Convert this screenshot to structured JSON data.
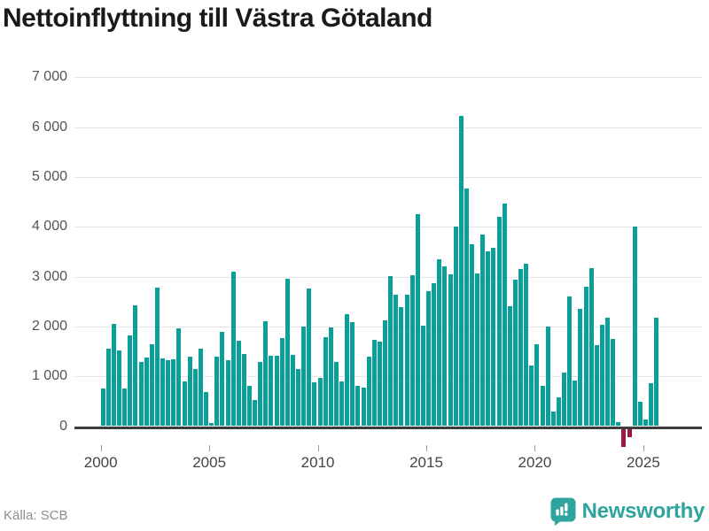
{
  "title": "Nettoinflyttning till Västra Götaland",
  "source": "Källa: SCB",
  "brand": {
    "name": "Newsworthy"
  },
  "colors": {
    "bar_positive": "#0aa099",
    "bar_negative": "#971843",
    "gridline": "#e4e4e4",
    "axis": "#3d3d3d",
    "labels": "#545454",
    "title": "#1a1a1a",
    "brand_teal": "#2fa49e"
  },
  "chart_data": {
    "type": "bar",
    "title": "Nettoinflyttning till Västra Götaland",
    "xlabel": "",
    "ylabel": "",
    "x_start": "2000 Q1",
    "x_end": "2025 Q3",
    "x_frequency": "quarterly",
    "ylim": [
      -500,
      7000
    ],
    "grid": "horizontal",
    "y_ticks": [
      {
        "value": 0,
        "label": "0"
      },
      {
        "value": 1000,
        "label": "1 000"
      },
      {
        "value": 2000,
        "label": "2 000"
      },
      {
        "value": 3000,
        "label": "3 000"
      },
      {
        "value": 4000,
        "label": "4 000"
      },
      {
        "value": 5000,
        "label": "5 000"
      },
      {
        "value": 6000,
        "label": "6 000"
      },
      {
        "value": 7000,
        "label": "7 000"
      }
    ],
    "x_ticks": [
      {
        "year": 2000,
        "label": "2000"
      },
      {
        "year": 2005,
        "label": "2005"
      },
      {
        "year": 2010,
        "label": "2010"
      },
      {
        "year": 2015,
        "label": "2015"
      },
      {
        "year": 2020,
        "label": "2020"
      },
      {
        "year": 2025,
        "label": "2025"
      }
    ],
    "values": [
      750,
      1550,
      2050,
      1520,
      750,
      1820,
      2420,
      1280,
      1370,
      1650,
      2780,
      1360,
      1330,
      1340,
      1960,
      900,
      1400,
      1150,
      1560,
      690,
      70,
      1400,
      1890,
      1330,
      3090,
      1710,
      1450,
      810,
      530,
      1280,
      2110,
      1410,
      1410,
      1760,
      2960,
      1430,
      1150,
      2000,
      2760,
      870,
      960,
      1790,
      1980,
      1280,
      900,
      2240,
      2080,
      810,
      780,
      1400,
      1730,
      1700,
      2120,
      3010,
      2645,
      2390,
      2630,
      3020,
      4250,
      2010,
      2710,
      2870,
      3350,
      3210,
      3050,
      4010,
      6230,
      4760,
      3640,
      3070,
      3840,
      3510,
      3570,
      4190,
      4460,
      2400,
      2930,
      3150,
      3250,
      1210,
      1650,
      810,
      2000,
      290,
      570,
      1080,
      2600,
      910,
      2360,
      2800,
      3160,
      1630,
      2040,
      2180,
      1740,
      80,
      -370,
      -160,
      4000,
      480,
      130,
      860,
      2180
    ]
  }
}
